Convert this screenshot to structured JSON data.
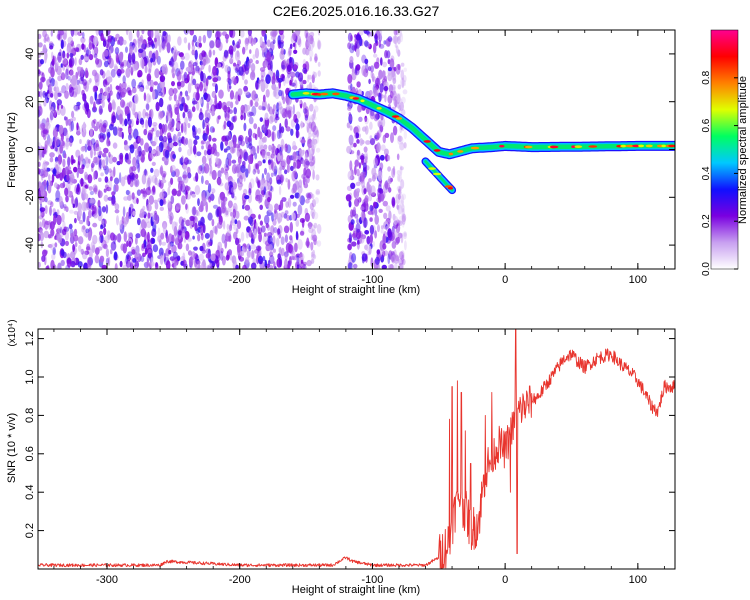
{
  "title": "C2E6.2025.016.16.33.G27",
  "chart_data": [
    {
      "type": "heatmap",
      "xlabel": "Height of straight line (km)",
      "ylabel": "Frequency (Hz)",
      "xlim": [
        -352,
        128
      ],
      "ylim": [
        -50,
        50
      ],
      "xticks": [
        -300,
        -200,
        -100,
        0,
        100
      ],
      "yticks": [
        -40,
        -20,
        0,
        20,
        40
      ],
      "colorbar": {
        "label": "Normalized spectral amplitude",
        "range": [
          0,
          1
        ],
        "ticks": [
          0.0,
          0.2,
          0.4,
          0.6,
          0.8
        ],
        "colors": [
          "#ffffff",
          "#c8a0f0",
          "#7a00e0",
          "#1010ff",
          "#00c8ff",
          "#00ff60",
          "#e0ff00",
          "#ff8000",
          "#ff0000",
          "#ff0090"
        ]
      },
      "features": {
        "noise_region": [
          [
            -352,
            -140
          ],
          [
            -118,
            -75
          ]
        ],
        "trace": [
          [
            -160,
            23
          ],
          [
            -150,
            23.5
          ],
          [
            -140,
            23
          ],
          [
            -130,
            23.5
          ],
          [
            -120,
            22.5
          ],
          [
            -110,
            21
          ],
          [
            -100,
            18.5
          ],
          [
            -90,
            16
          ],
          [
            -80,
            13
          ],
          [
            -70,
            9
          ],
          [
            -60,
            4
          ],
          [
            -50,
            -1
          ],
          [
            -42,
            -2
          ],
          [
            -35,
            -1
          ],
          [
            -25,
            0.5
          ],
          [
            -10,
            1
          ],
          [
            0,
            1.5
          ],
          [
            20,
            1
          ],
          [
            60,
            1.2
          ],
          [
            100,
            1.5
          ],
          [
            128,
            1.5
          ]
        ],
        "branch": [
          [
            -60,
            -5
          ],
          [
            -55,
            -8
          ],
          [
            -50,
            -11
          ],
          [
            -45,
            -14
          ],
          [
            -40,
            -17
          ]
        ]
      }
    },
    {
      "type": "line",
      "xlabel": "Height of straight line (km)",
      "ylabel": "SNR (10 * v/v)",
      "multiplier": "(x10⁴)",
      "xlim": [
        -352,
        128
      ],
      "ylim": [
        0,
        1.25
      ],
      "xticks": [
        -300,
        -200,
        -100,
        0,
        100
      ],
      "yticks": [
        0.2,
        0.4,
        0.6,
        0.8,
        1.0,
        1.2
      ],
      "color": "#e8342d",
      "envelope": {
        "x": [
          -352,
          -300,
          -260,
          -255,
          -200,
          -130,
          -120,
          -115,
          -100,
          -60,
          -50,
          -42,
          -38,
          -35,
          -30,
          -25,
          -20,
          -15,
          -10,
          -5,
          0,
          5,
          10,
          15,
          20,
          25,
          30,
          35,
          40,
          45,
          50,
          55,
          60,
          70,
          80,
          85,
          90,
          95,
          100,
          105,
          110,
          115,
          120,
          128
        ],
        "y": [
          0.02,
          0.02,
          0.02,
          0.04,
          0.02,
          0.02,
          0.06,
          0.04,
          0.02,
          0.02,
          0.06,
          0.15,
          0.3,
          0.4,
          0.3,
          0.2,
          0.25,
          0.5,
          0.58,
          0.65,
          0.62,
          0.72,
          0.82,
          0.85,
          0.88,
          0.9,
          0.95,
          1.0,
          1.05,
          1.1,
          1.12,
          1.08,
          1.05,
          1.1,
          1.12,
          1.08,
          1.05,
          1.02,
          0.98,
          0.92,
          0.85,
          0.82,
          0.95,
          0.95
        ]
      },
      "spikes": [
        [
          -42,
          0.78
        ],
        [
          -40,
          0.95
        ],
        [
          -36,
          0.98
        ],
        [
          -33,
          0.92
        ],
        [
          -30,
          0.72
        ],
        [
          -26,
          0.55
        ],
        [
          -15,
          0.8
        ],
        [
          -10,
          0.92
        ],
        [
          4,
          0.4
        ],
        [
          8,
          1.25
        ],
        [
          9,
          0.08
        ]
      ]
    }
  ]
}
